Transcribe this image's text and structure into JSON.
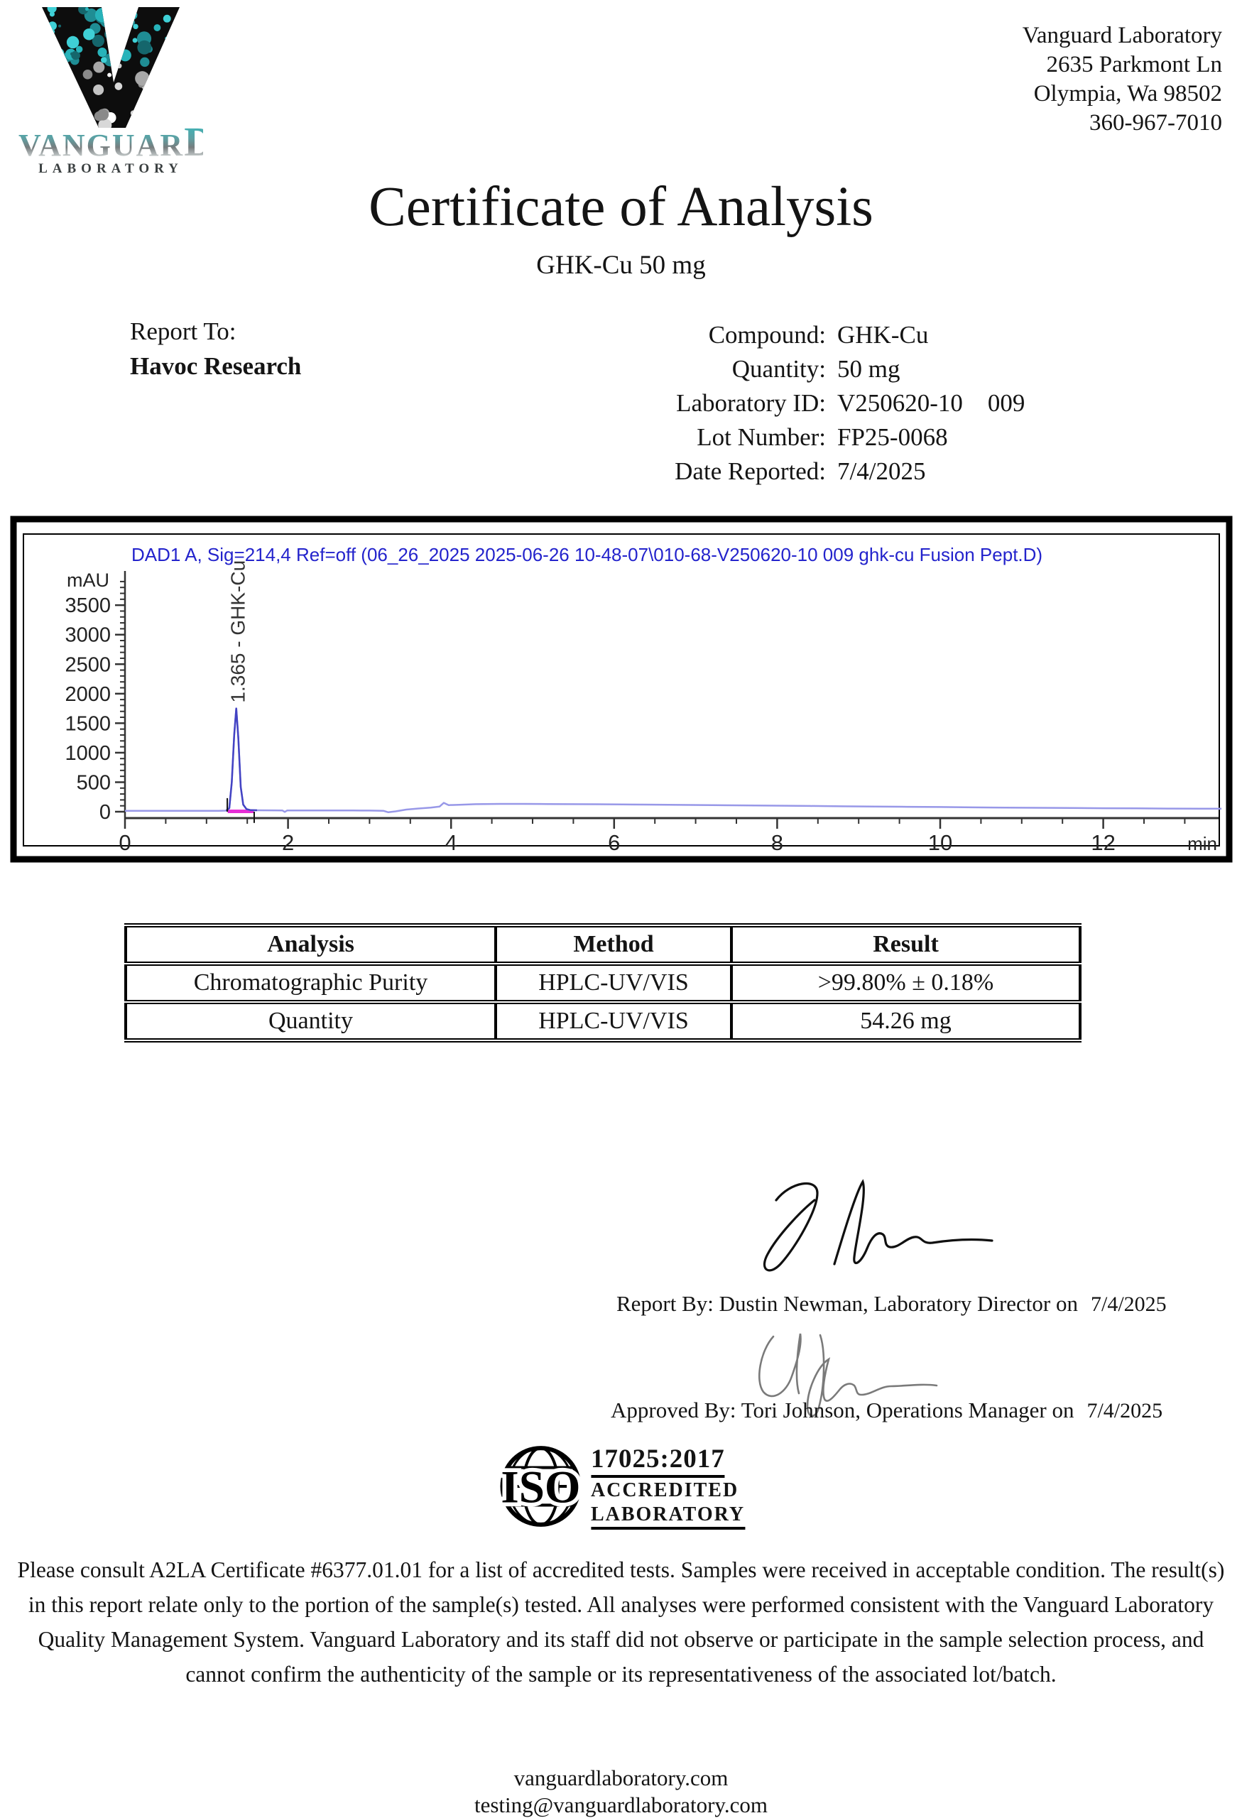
{
  "logo": {
    "letter": "V",
    "name_main": "VANGUAR",
    "name_last": "D",
    "sub": "LABORATORY"
  },
  "address": {
    "lines": [
      "Vanguard Laboratory",
      "2635 Parkmont Ln",
      "Olympia, Wa 98502",
      "360-967-7010"
    ]
  },
  "title": "Certificate of Analysis",
  "subtitle": "GHK-Cu 50 mg",
  "report_to": {
    "label": "Report To:",
    "name": "Havoc Research"
  },
  "details": [
    {
      "label": "Compound:",
      "value": "GHK-Cu"
    },
    {
      "label": "Quantity:",
      "value": "50 mg"
    },
    {
      "label": "Laboratory ID:",
      "value": "V250620-10    009"
    },
    {
      "label": "Lot Number:",
      "value": "FP25-0068"
    },
    {
      "label": "Date Reported:",
      "value": "7/4/2025"
    }
  ],
  "chart_data": {
    "type": "line",
    "title": "DAD1 A, Sig=214,4 Ref=off (06_26_2025 2025-06-26 10-48-07\\010-68-V250620-10 009 ghk-cu Fusion Pept.D)",
    "ylabel": "mAU",
    "xlabel": "min",
    "xlim": [
      0,
      13.45
    ],
    "ylim": [
      -100,
      4000
    ],
    "yticks": [
      0,
      500,
      1000,
      1500,
      2000,
      2500,
      3000,
      3500
    ],
    "xticks": [
      0,
      2,
      4,
      6,
      8,
      10,
      12
    ],
    "grid": false,
    "legend": "none",
    "peak": {
      "retention_time": 1.365,
      "label": "1.365 -  GHK-Cu",
      "height_mAU": 1750,
      "overlay_range": [
        1.2,
        1.64
      ]
    },
    "integration_baseline": {
      "from": 1.26,
      "to": 1.58,
      "value_mAU": 6
    },
    "series": [
      {
        "name": "DAD1 A",
        "points": [
          [
            0,
            14
          ],
          [
            0.25,
            15
          ],
          [
            0.5,
            14
          ],
          [
            0.75,
            15
          ],
          [
            1.0,
            15
          ],
          [
            1.15,
            16
          ],
          [
            1.24,
            18
          ],
          [
            1.28,
            60
          ],
          [
            1.31,
            500
          ],
          [
            1.34,
            1300
          ],
          [
            1.365,
            1750
          ],
          [
            1.39,
            1250
          ],
          [
            1.42,
            420
          ],
          [
            1.45,
            120
          ],
          [
            1.49,
            45
          ],
          [
            1.54,
            26
          ],
          [
            1.62,
            24
          ],
          [
            1.8,
            23
          ],
          [
            1.93,
            22
          ],
          [
            1.96,
            -4
          ],
          [
            1.99,
            22
          ],
          [
            2.2,
            22
          ],
          [
            2.5,
            21
          ],
          [
            2.8,
            20
          ],
          [
            3.0,
            19
          ],
          [
            3.17,
            16
          ],
          [
            3.23,
            -10
          ],
          [
            3.32,
            6
          ],
          [
            3.45,
            36
          ],
          [
            3.6,
            54
          ],
          [
            3.75,
            70
          ],
          [
            3.86,
            88
          ],
          [
            3.91,
            150
          ],
          [
            3.97,
            112
          ],
          [
            4.1,
            118
          ],
          [
            4.3,
            127
          ],
          [
            4.6,
            132
          ],
          [
            4.9,
            132
          ],
          [
            5.2,
            130
          ],
          [
            5.5,
            128
          ],
          [
            5.8,
            126
          ],
          [
            6.1,
            123
          ],
          [
            6.4,
            120
          ],
          [
            6.8,
            115
          ],
          [
            7.2,
            111
          ],
          [
            7.6,
            107
          ],
          [
            8.0,
            102
          ],
          [
            8.4,
            97
          ],
          [
            8.8,
            92
          ],
          [
            9.2,
            88
          ],
          [
            9.6,
            83
          ],
          [
            10.0,
            79
          ],
          [
            10.4,
            74
          ],
          [
            10.8,
            70
          ],
          [
            11.2,
            66
          ],
          [
            11.6,
            62
          ],
          [
            12.0,
            59
          ],
          [
            12.4,
            56
          ],
          [
            12.8,
            53
          ],
          [
            13.2,
            51
          ],
          [
            13.45,
            50
          ]
        ]
      }
    ],
    "colors": {
      "trace": "#9898e8",
      "peak": "#4343c3",
      "integration_baseline": "#e62ed6",
      "header_text": "#2323cc",
      "axis": "#333333"
    }
  },
  "results_table": {
    "headers": [
      "Analysis",
      "Method",
      "Result"
    ],
    "rows": [
      [
        "Chromatographic Purity",
        "HPLC-UV/VIS",
        ">99.80% ± 0.18%"
      ],
      [
        "Quantity",
        "HPLC-UV/VIS",
        "54.26 mg"
      ]
    ]
  },
  "signatures": [
    {
      "line": "Report By: Dustin Newman, Laboratory Director on",
      "date": "7/4/2025"
    },
    {
      "line": "Approved By: Tori Johnson, Operations Manager on",
      "date": "7/4/2025"
    }
  ],
  "accreditation": {
    "iso": "ISO",
    "standard": "17025:2017",
    "line1": "ACCREDITED",
    "line2": "LABORATORY"
  },
  "disclaimer": "Please consult A2LA Certificate #6377.01.01 for a list of accredited tests. Samples were received in acceptable condition. The result(s) in this report relate only to the portion of the sample(s) tested. All analyses were performed consistent with the Vanguard Laboratory Quality Management System. Vanguard Laboratory and its staff did not observe or participate in the sample selection process, and cannot confirm the authenticity of the sample or its representativeness of the associated lot/batch.",
  "footer": {
    "website": "vanguardlaboratory.com",
    "email": "testing@vanguardlaboratory.com"
  }
}
